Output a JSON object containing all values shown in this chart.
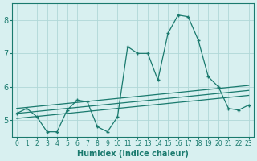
{
  "xlabel": "Humidex (Indice chaleur)",
  "background_color": "#d8f0f0",
  "line_color": "#1a7a6e",
  "grid_color": "#b0d8d8",
  "x_data": [
    0,
    1,
    2,
    3,
    4,
    5,
    6,
    7,
    8,
    9,
    10,
    11,
    12,
    13,
    14,
    15,
    16,
    17,
    18,
    19,
    20,
    21,
    22,
    23
  ],
  "y_data": [
    5.2,
    5.35,
    5.1,
    4.65,
    4.65,
    5.3,
    5.6,
    5.55,
    4.8,
    4.65,
    5.1,
    7.2,
    7.0,
    7.0,
    6.2,
    7.6,
    8.15,
    8.1,
    7.4,
    6.3,
    6.0,
    5.35,
    5.3,
    5.45
  ],
  "trend_upper": [
    5.35,
    5.38,
    5.41,
    5.44,
    5.47,
    5.5,
    5.53,
    5.56,
    5.59,
    5.62,
    5.65,
    5.68,
    5.71,
    5.74,
    5.77,
    5.8,
    5.83,
    5.86,
    5.89,
    5.92,
    5.95,
    5.98,
    6.01,
    6.04
  ],
  "trend_mid": [
    5.2,
    5.23,
    5.26,
    5.29,
    5.32,
    5.35,
    5.38,
    5.41,
    5.44,
    5.47,
    5.5,
    5.53,
    5.56,
    5.59,
    5.62,
    5.65,
    5.68,
    5.71,
    5.74,
    5.77,
    5.8,
    5.83,
    5.86,
    5.89
  ],
  "trend_lower": [
    5.05,
    5.08,
    5.11,
    5.14,
    5.17,
    5.2,
    5.23,
    5.26,
    5.29,
    5.32,
    5.35,
    5.38,
    5.41,
    5.44,
    5.47,
    5.5,
    5.53,
    5.56,
    5.59,
    5.62,
    5.65,
    5.68,
    5.71,
    5.74
  ],
  "xlim": [
    -0.5,
    23.5
  ],
  "ylim": [
    4.5,
    8.5
  ],
  "yticks": [
    5,
    6,
    7,
    8
  ],
  "xticks": [
    0,
    1,
    2,
    3,
    4,
    5,
    6,
    7,
    8,
    9,
    10,
    11,
    12,
    13,
    14,
    15,
    16,
    17,
    18,
    19,
    20,
    21,
    22,
    23
  ]
}
